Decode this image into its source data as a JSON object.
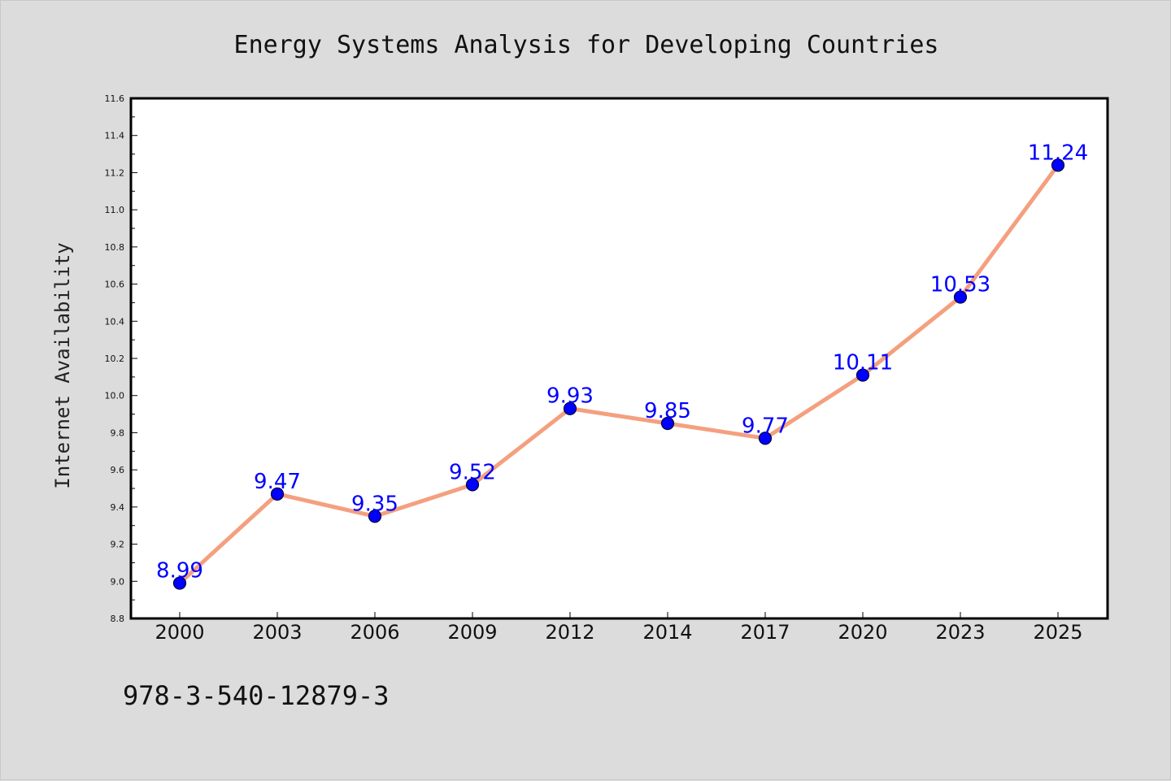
{
  "chart_data": {
    "type": "line",
    "title": "Energy Systems Analysis for Developing Countries",
    "xlabel": "",
    "ylabel": "Internet Availability",
    "categories": [
      "2000",
      "2003",
      "2006",
      "2009",
      "2012",
      "2014",
      "2017",
      "2020",
      "2023",
      "2025"
    ],
    "series": [
      {
        "values": [
          8.99,
          9.47,
          9.35,
          9.52,
          9.93,
          9.85,
          9.77,
          10.11,
          10.53,
          11.24
        ],
        "data_labels": [
          "8.99",
          "9.47",
          "9.35",
          "9.52",
          "9.93",
          "9.85",
          "9.77",
          "10.11",
          "10.53",
          "11.24"
        ]
      }
    ],
    "ylim": [
      8.8,
      11.6
    ],
    "yticks": [
      "8.8",
      "9.0",
      "9.2",
      "9.4",
      "9.6",
      "9.8",
      "10.0",
      "10.2",
      "10.4",
      "10.6",
      "10.8",
      "11.0",
      "11.2",
      "11.4",
      "11.6"
    ],
    "grid": false,
    "legend": "none",
    "annotation": "978-3-540-12879-3",
    "colors": {
      "line": "#f4a07f",
      "marker_fill": "#0000ff",
      "marker_edge": "#00003a",
      "data_label": "#0000ff",
      "plot_background": "#ffffff",
      "figure_background": "#dcdcdc"
    }
  }
}
